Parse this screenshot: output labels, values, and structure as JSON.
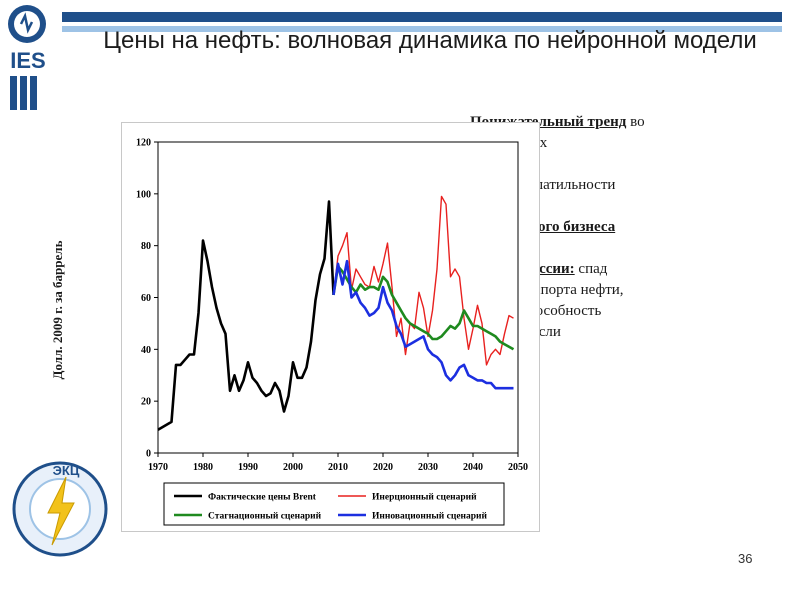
{
  "slide": {
    "title": "Цены на нефть: волновая динамика по нейронной модели",
    "page_number": "36",
    "logo_text": "IES",
    "logo2_text": "ЭКЦ",
    "accent_dark": "#1f4f8a",
    "accent_light": "#9ec3e6"
  },
  "bullets": {
    "b1_bold": "Понижательный тренд",
    "b1_rest": " во",
    "b1_line2": "х сценариях",
    "b2_text": "ижение волатильности",
    "b3_bold": "ат нефтяного бизнеса",
    "b4_bold": "зов для России:",
    "b4_rest": " спад",
    "b4_line2": "одов от экспорта нефти,",
    "b4_line3": "курентоспособность",
    "b4_line4": "тяной отрасли"
  },
  "chart_data": {
    "type": "line",
    "ylabel": "Долл. 2009 г. за баррель",
    "xlim": [
      1970,
      2050
    ],
    "ylim": [
      0,
      120
    ],
    "xticks": [
      1970,
      1980,
      1990,
      2000,
      2010,
      2020,
      2030,
      2040,
      2050
    ],
    "yticks": [
      0,
      20,
      40,
      60,
      80,
      100,
      120
    ],
    "grid": false,
    "legend_position": "bottom",
    "series": [
      {
        "name": "Фактические цены Brent",
        "color": "#000000",
        "x": [
          1970,
          1971,
          1972,
          1973,
          1974,
          1975,
          1976,
          1977,
          1978,
          1979,
          1980,
          1981,
          1982,
          1983,
          1984,
          1985,
          1986,
          1987,
          1988,
          1989,
          1990,
          1991,
          1992,
          1993,
          1994,
          1995,
          1996,
          1997,
          1998,
          1999,
          2000,
          2001,
          2002,
          2003,
          2004,
          2005,
          2006,
          2007,
          2008,
          2009
        ],
        "y": [
          9,
          10,
          11,
          12,
          34,
          34,
          36,
          38,
          38,
          54,
          82,
          74,
          64,
          56,
          50,
          46,
          24,
          30,
          24,
          28,
          35,
          29,
          27,
          24,
          22,
          23,
          27,
          24,
          16,
          22,
          35,
          29,
          29,
          33,
          43,
          59,
          69,
          75,
          97,
          61
        ]
      },
      {
        "name": "Инерционный сценарий",
        "color": "#e8211f",
        "x": [
          2009,
          2010,
          2011,
          2012,
          2013,
          2014,
          2015,
          2016,
          2017,
          2018,
          2019,
          2020,
          2021,
          2022,
          2023,
          2024,
          2025,
          2026,
          2027,
          2028,
          2029,
          2030,
          2031,
          2032,
          2033,
          2034,
          2035,
          2036,
          2037,
          2038,
          2039,
          2040,
          2041,
          2042,
          2043,
          2044,
          2045,
          2046,
          2047,
          2048,
          2049
        ],
        "y": [
          61,
          76,
          80,
          85,
          63,
          71,
          68,
          65,
          64,
          72,
          66,
          73,
          81,
          64,
          45,
          52,
          38,
          50,
          48,
          62,
          56,
          45,
          55,
          71,
          99,
          96,
          68,
          71,
          68,
          52,
          40,
          48,
          57,
          50,
          34,
          38,
          40,
          38,
          46,
          53,
          52
        ]
      },
      {
        "name": "Стагнационный сценарий",
        "color": "#1f8a1f",
        "x": [
          2009,
          2010,
          2011,
          2012,
          2013,
          2014,
          2015,
          2016,
          2017,
          2018,
          2019,
          2020,
          2021,
          2022,
          2023,
          2024,
          2025,
          2026,
          2027,
          2028,
          2029,
          2030,
          2031,
          2032,
          2033,
          2034,
          2035,
          2036,
          2037,
          2038,
          2039,
          2040,
          2041,
          2042,
          2043,
          2044,
          2045,
          2046,
          2047,
          2048,
          2049
        ],
        "y": [
          61,
          72,
          70,
          67,
          64,
          62,
          65,
          63,
          64,
          64,
          63,
          68,
          66,
          61,
          58,
          55,
          52,
          50,
          49,
          48,
          47,
          46,
          44,
          44,
          45,
          47,
          49,
          48,
          50,
          55,
          52,
          49,
          49,
          48,
          47,
          46,
          45,
          43,
          42,
          41,
          40
        ]
      },
      {
        "name": "Инновационный сценарий",
        "color": "#1c2fe0",
        "x": [
          2009,
          2010,
          2011,
          2012,
          2013,
          2014,
          2015,
          2016,
          2017,
          2018,
          2019,
          2020,
          2021,
          2022,
          2023,
          2024,
          2025,
          2026,
          2027,
          2028,
          2029,
          2030,
          2031,
          2032,
          2033,
          2034,
          2035,
          2036,
          2037,
          2038,
          2039,
          2040,
          2041,
          2042,
          2043,
          2044,
          2045,
          2046,
          2047,
          2048,
          2049
        ],
        "y": [
          61,
          73,
          65,
          74,
          60,
          62,
          58,
          56,
          53,
          54,
          56,
          64,
          58,
          55,
          49,
          46,
          41,
          42,
          43,
          44,
          45,
          40,
          38,
          37,
          35,
          30,
          28,
          30,
          33,
          34,
          30,
          29,
          28,
          28,
          27,
          27,
          25,
          25,
          25,
          25,
          25
        ]
      }
    ]
  }
}
